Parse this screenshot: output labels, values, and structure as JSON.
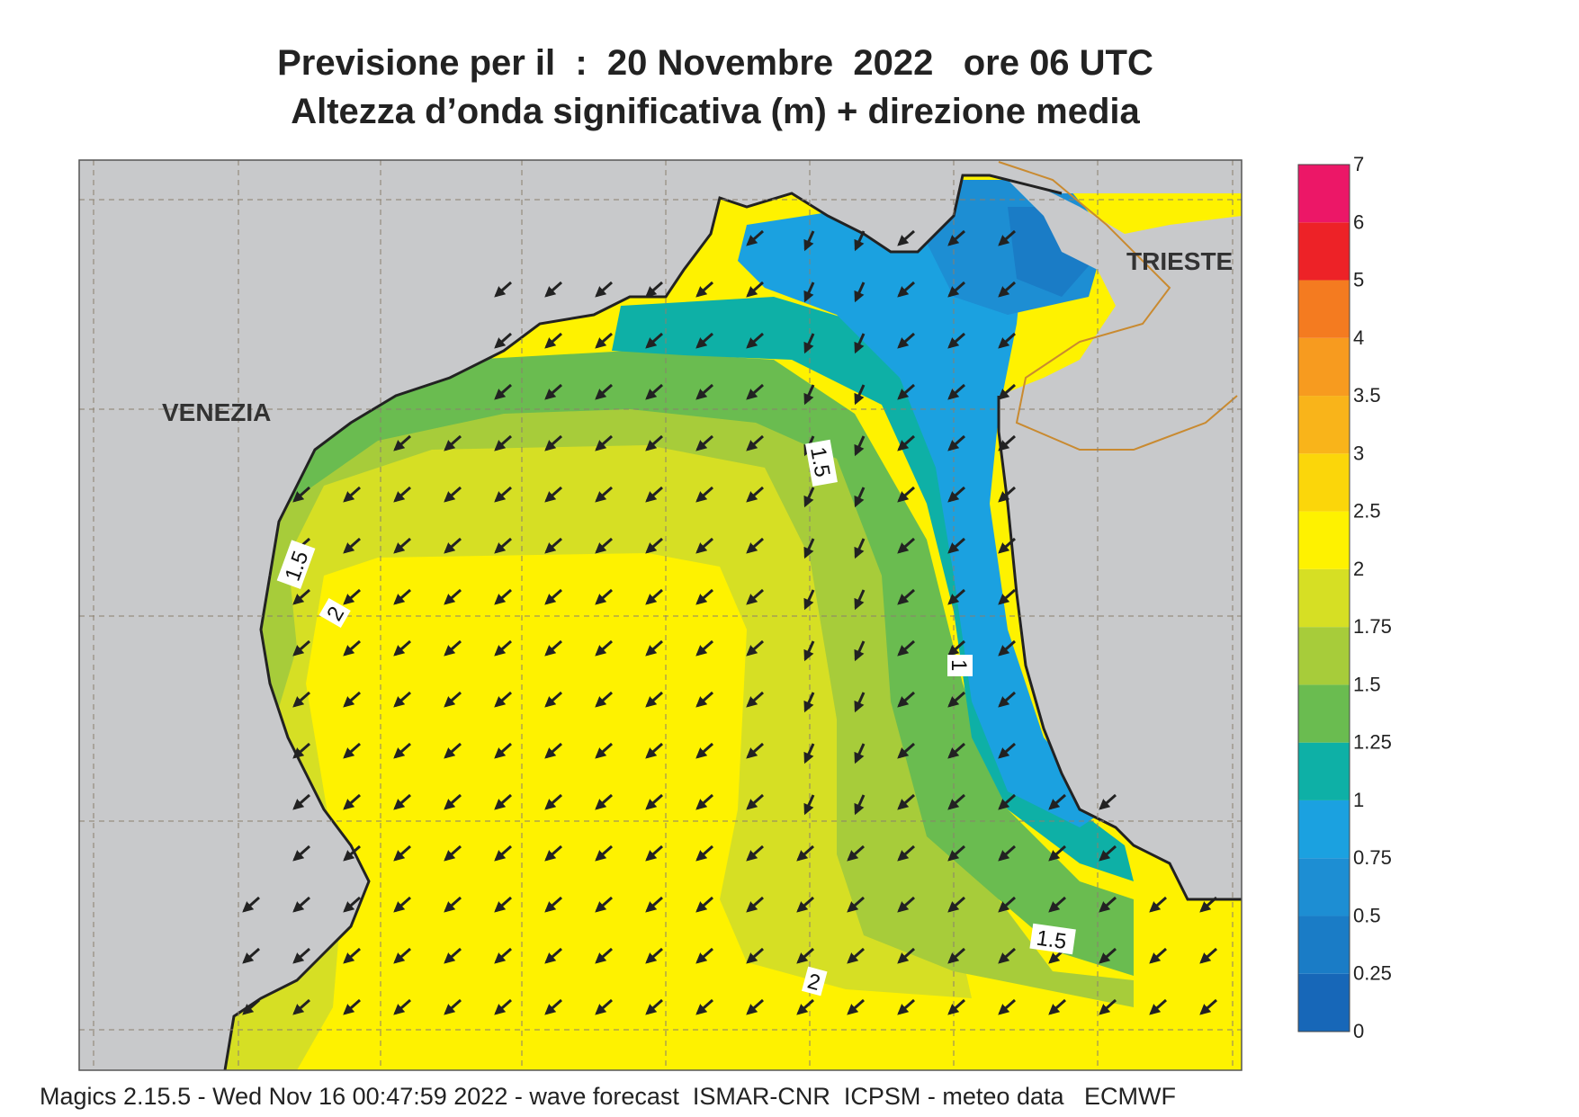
{
  "title_line1": "Previsione per il  :  20 Novembre  2022   ore 06 UTC",
  "title_line2": "Altezza d’onda significativa (m) + direzione media",
  "places": {
    "venezia": "VENEZIA",
    "trieste": "TRIESTE"
  },
  "contour_labels": {
    "a": "1.5",
    "b": "1.5",
    "c": "2",
    "d": "1",
    "e": "1.5",
    "f": "2"
  },
  "legend": {
    "ticks": [
      "0",
      "0.25",
      "0.5",
      "0.75",
      "1",
      "1.25",
      "1.5",
      "1.75",
      "2",
      "2.5",
      "3",
      "3.5",
      "4",
      "5",
      "6",
      "7"
    ],
    "colors": [
      "#1767b8",
      "#1a7cc6",
      "#1d8ed3",
      "#1ba1e0",
      "#0eb0a6",
      "#6abc50",
      "#a7cc3a",
      "#d6df24",
      "#fef200",
      "#fbd60a",
      "#f9b41a",
      "#f79b1f",
      "#f47b20",
      "#ed2227",
      "#ec1767"
    ]
  },
  "colors": {
    "land": "#c8c9cb",
    "coast": "#222222",
    "border": "#c98a30",
    "grid": "#8a7f6e"
  },
  "footer": "Magics 2.15.5 - Wed Nov 16 00:47:59 2022 - wave forecast  ISMAR-CNR  ICPSM - meteo data   ECMWF"
}
